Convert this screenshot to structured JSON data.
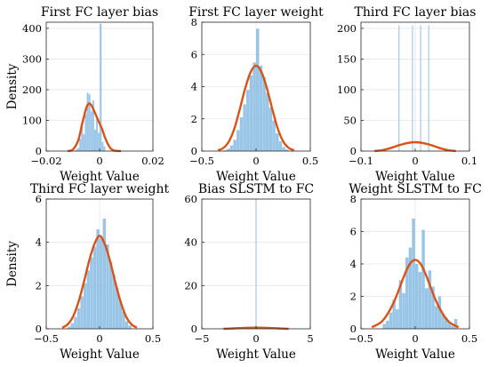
{
  "chart_data": [
    {
      "type": "bar",
      "title": "First FC layer bias",
      "xlabel": "Weight Value",
      "ylabel": "Density",
      "xlim": [
        -0.02,
        0.02
      ],
      "ylim": [
        0,
        420
      ],
      "xticks": [
        -0.02,
        0,
        0.02
      ],
      "xtick_labels": [
        "−0.02",
        "0",
        "0.02"
      ],
      "yticks": [
        0,
        100,
        200,
        300,
        400
      ],
      "ytick_labels": [
        "0",
        "100",
        "200",
        "300",
        "400"
      ],
      "grid": true,
      "histogram": {
        "bin_edges": [
          -0.009,
          -0.0083,
          -0.0076,
          -0.0069,
          -0.0062,
          -0.0055,
          -0.0048,
          -0.0041,
          -0.0034,
          -0.0027,
          -0.002,
          -0.0013,
          -0.0006,
          0.0001,
          0.0008,
          0.0015,
          0.0022
        ],
        "density": [
          5,
          10,
          40,
          80,
          55,
          120,
          190,
          185,
          130,
          165,
          70,
          110,
          60,
          415,
          30,
          15
        ]
      },
      "fit_curve": {
        "x": [
          -0.012,
          -0.01,
          -0.008,
          -0.0065,
          -0.005,
          -0.004,
          -0.003,
          -0.002,
          -0.001,
          0,
          0.001,
          0.002,
          0.003,
          0.004,
          0.005,
          0.006,
          0.008
        ],
        "y": [
          0,
          5,
          35,
          90,
          140,
          155,
          148,
          130,
          110,
          90,
          70,
          45,
          25,
          10,
          3,
          1,
          0
        ]
      }
    },
    {
      "type": "bar",
      "title": "First FC layer weight",
      "xlabel": "Weight Value",
      "ylabel": "",
      "xlim": [
        -0.5,
        0.5
      ],
      "ylim": [
        0,
        8
      ],
      "xticks": [
        -0.5,
        0,
        0.5
      ],
      "xtick_labels": [
        "−0.5",
        "0",
        "0.5"
      ],
      "yticks": [
        0,
        2,
        4,
        6,
        8
      ],
      "ytick_labels": [
        "0",
        "2",
        "4",
        "6",
        "8"
      ],
      "grid": true,
      "histogram": {
        "bin_edges": [
          -0.3,
          -0.27,
          -0.24,
          -0.21,
          -0.18,
          -0.15,
          -0.12,
          -0.09,
          -0.06,
          -0.03,
          0,
          0.03,
          0.06,
          0.09,
          0.12,
          0.15,
          0.18,
          0.21,
          0.24,
          0.27,
          0.3
        ],
        "density": [
          0.05,
          0.15,
          0.35,
          0.7,
          1.3,
          2.1,
          2.9,
          3.8,
          4.7,
          5.5,
          7.6,
          5.3,
          4.6,
          3.6,
          2.7,
          1.9,
          1.1,
          0.6,
          0.25,
          0.1
        ]
      },
      "fit_curve": {
        "x": [
          -0.35,
          -0.3,
          -0.25,
          -0.2,
          -0.15,
          -0.1,
          -0.05,
          0,
          0.05,
          0.1,
          0.15,
          0.2,
          0.25,
          0.3,
          0.35
        ],
        "y": [
          0.05,
          0.2,
          0.6,
          1.4,
          2.6,
          3.9,
          4.9,
          5.3,
          4.9,
          3.9,
          2.6,
          1.4,
          0.6,
          0.2,
          0.05
        ]
      }
    },
    {
      "type": "bar",
      "title": "Third FC layer bias",
      "xlabel": "Weight Value",
      "ylabel": "",
      "xlim": [
        -0.1,
        0.1
      ],
      "ylim": [
        0,
        210
      ],
      "xticks": [
        -0.1,
        0,
        0.1
      ],
      "xtick_labels": [
        "−0.1",
        "0",
        "0.1"
      ],
      "yticks": [
        0,
        50,
        100,
        150,
        200
      ],
      "ytick_labels": [
        "0",
        "50",
        "100",
        "150",
        "200"
      ],
      "grid": true,
      "spikes": {
        "x": [
          -0.03,
          -0.005,
          0.01,
          0.025
        ],
        "density": [
          205,
          205,
          205,
          205
        ]
      },
      "fit_curve": {
        "x": [
          -0.075,
          -0.06,
          -0.045,
          -0.03,
          -0.015,
          0,
          0.015,
          0.03,
          0.045,
          0.06,
          0.075
        ],
        "y": [
          0,
          1.5,
          5,
          9.5,
          13,
          14.5,
          13,
          9.5,
          5,
          1.5,
          0
        ]
      }
    },
    {
      "type": "bar",
      "title": "Third FC layer weight",
      "xlabel": "Weight Value",
      "ylabel": "Density",
      "xlim": [
        -0.5,
        0.5
      ],
      "ylim": [
        0,
        6
      ],
      "xticks": [
        -0.5,
        0,
        0.5
      ],
      "xtick_labels": [
        "−0.5",
        "0",
        "0.5"
      ],
      "yticks": [
        0,
        2,
        4,
        6
      ],
      "ytick_labels": [
        "0",
        "2",
        "4",
        "6"
      ],
      "grid": true,
      "histogram": {
        "bin_edges": [
          -0.3,
          -0.27,
          -0.24,
          -0.21,
          -0.18,
          -0.15,
          -0.12,
          -0.09,
          -0.06,
          -0.03,
          0,
          0.03,
          0.06,
          0.09,
          0.12,
          0.15,
          0.18,
          0.21,
          0.24,
          0.27,
          0.3
        ],
        "density": [
          0.1,
          0.25,
          0.55,
          0.95,
          1.5,
          2.1,
          2.7,
          3.3,
          3.8,
          4.6,
          4.2,
          5.1,
          3.9,
          3.1,
          2.5,
          1.9,
          1.3,
          0.8,
          0.35,
          0.15
        ]
      },
      "fit_curve": {
        "x": [
          -0.35,
          -0.3,
          -0.25,
          -0.2,
          -0.15,
          -0.1,
          -0.05,
          0,
          0.05,
          0.1,
          0.15,
          0.2,
          0.25,
          0.3,
          0.35
        ],
        "y": [
          0.05,
          0.2,
          0.55,
          1.2,
          2.1,
          3.1,
          3.9,
          4.3,
          3.9,
          3.1,
          2.1,
          1.2,
          0.55,
          0.2,
          0.05
        ]
      }
    },
    {
      "type": "bar",
      "title": "Bias SLSTM to FC",
      "xlabel": "Weight Value",
      "ylabel": "",
      "xlim": [
        -5,
        5
      ],
      "ylim": [
        0,
        60
      ],
      "xticks": [
        -5,
        0,
        5
      ],
      "xtick_labels": [
        "−5",
        "0",
        "5"
      ],
      "yticks": [
        0,
        20,
        40,
        60
      ],
      "ytick_labels": [
        "0",
        "20",
        "40",
        "60"
      ],
      "grid": true,
      "spikes": {
        "x": [
          0
        ],
        "density": [
          60
        ]
      },
      "fit_curve": {
        "x": [
          -3,
          -2,
          -1,
          0,
          1,
          2,
          3
        ],
        "y": [
          0,
          0.2,
          0.45,
          0.55,
          0.45,
          0.2,
          0
        ]
      }
    },
    {
      "type": "bar",
      "title": "Weight SLSTM to FC",
      "xlabel": "Weight Value",
      "ylabel": "",
      "xlim": [
        -0.5,
        0.5
      ],
      "ylim": [
        0,
        8
      ],
      "xticks": [
        -0.5,
        0,
        0.5
      ],
      "xtick_labels": [
        "−0.5",
        "0",
        "0.5"
      ],
      "yticks": [
        0,
        2,
        4,
        6,
        8
      ],
      "ytick_labels": [
        "0",
        "2",
        "4",
        "6",
        "8"
      ],
      "grid": true,
      "histogram": {
        "bin_edges": [
          -0.3,
          -0.27,
          -0.24,
          -0.21,
          -0.18,
          -0.15,
          -0.12,
          -0.09,
          -0.06,
          -0.03,
          0,
          0.03,
          0.06,
          0.09,
          0.12,
          0.15,
          0.18,
          0.21,
          0.24,
          0.27,
          0.3,
          0.33,
          0.36,
          0.39
        ],
        "density": [
          0.3,
          0.5,
          1.0,
          1.8,
          1.2,
          3.0,
          2.2,
          4.4,
          5.0,
          6.8,
          4.0,
          3.5,
          6.1,
          2.5,
          3.6,
          2.6,
          1.4,
          2.0,
          0.9,
          0.7,
          0.4,
          0.2,
          0.6
        ]
      },
      "fit_curve": {
        "x": [
          -0.4,
          -0.3,
          -0.2,
          -0.1,
          -0.05,
          0,
          0.05,
          0.1,
          0.2,
          0.3,
          0.4
        ],
        "y": [
          0.1,
          0.5,
          1.6,
          3.3,
          4.0,
          4.25,
          4.0,
          3.3,
          1.6,
          0.5,
          0.1
        ]
      }
    }
  ]
}
